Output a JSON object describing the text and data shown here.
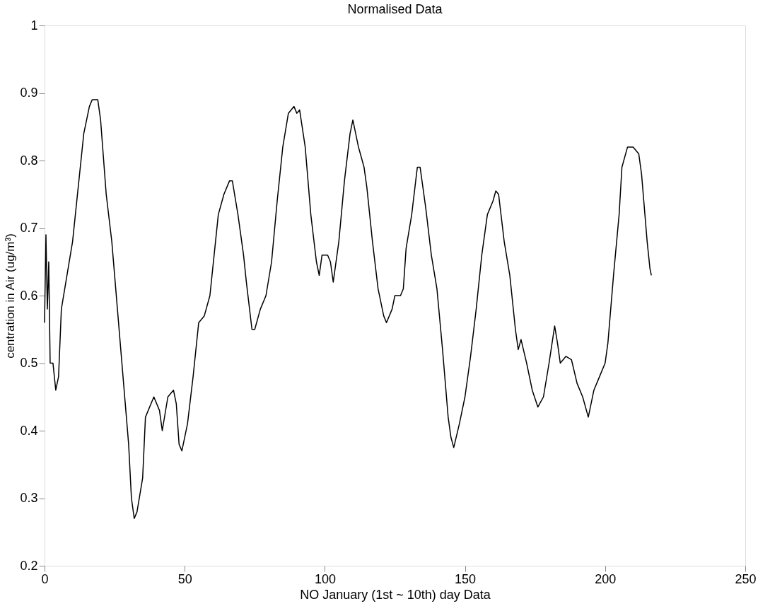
{
  "chart_data": {
    "type": "line",
    "title": "Normalised Data",
    "xlabel": "NO January (1st ~ 10th) day Data",
    "ylabel": "centration in Air    (ug/m³)",
    "x": [
      0,
      0.5,
      1,
      1.5,
      2,
      3,
      4,
      5,
      6,
      8,
      10,
      12,
      14,
      16,
      17,
      19,
      20,
      22,
      24,
      26,
      28,
      30,
      31,
      32,
      33,
      35,
      36,
      38,
      39,
      41,
      42,
      44,
      46,
      47,
      48,
      49,
      51,
      53,
      55,
      57,
      59,
      61,
      62,
      64,
      66,
      67,
      69,
      71,
      72,
      74,
      75,
      77,
      79,
      81,
      83,
      85,
      87,
      89,
      90,
      91,
      93,
      95,
      97,
      98,
      99,
      101,
      102,
      103,
      105,
      107,
      109,
      110,
      112,
      114,
      115,
      117,
      119,
      121,
      122,
      124,
      125,
      127,
      128,
      129,
      131,
      133,
      134,
      136,
      138,
      140,
      142,
      144,
      145,
      146,
      148,
      150,
      152,
      154,
      156,
      158,
      160,
      161,
      162,
      164,
      166,
      168,
      169,
      170,
      172,
      174,
      176,
      178,
      180,
      182,
      183,
      184,
      186,
      188,
      190,
      192,
      194,
      196,
      198,
      200,
      201,
      203,
      205,
      206,
      208,
      210,
      212,
      213,
      214,
      215,
      216,
      216.5
    ],
    "series": [
      {
        "color": "#000000",
        "values": [
          0.56,
          0.69,
          0.58,
          0.65,
          0.5,
          0.5,
          0.46,
          0.48,
          0.58,
          0.63,
          0.68,
          0.76,
          0.84,
          0.88,
          0.89,
          0.89,
          0.86,
          0.75,
          0.68,
          0.58,
          0.48,
          0.38,
          0.3,
          0.27,
          0.28,
          0.33,
          0.42,
          0.44,
          0.45,
          0.43,
          0.4,
          0.45,
          0.46,
          0.44,
          0.38,
          0.37,
          0.41,
          0.48,
          0.56,
          0.57,
          0.6,
          0.68,
          0.72,
          0.75,
          0.77,
          0.77,
          0.72,
          0.66,
          0.62,
          0.55,
          0.55,
          0.58,
          0.6,
          0.65,
          0.74,
          0.82,
          0.87,
          0.88,
          0.87,
          0.875,
          0.82,
          0.72,
          0.65,
          0.63,
          0.66,
          0.66,
          0.65,
          0.62,
          0.68,
          0.77,
          0.84,
          0.86,
          0.82,
          0.79,
          0.76,
          0.68,
          0.61,
          0.57,
          0.56,
          0.58,
          0.6,
          0.6,
          0.61,
          0.67,
          0.72,
          0.79,
          0.79,
          0.73,
          0.66,
          0.61,
          0.52,
          0.42,
          0.39,
          0.375,
          0.41,
          0.45,
          0.51,
          0.58,
          0.66,
          0.72,
          0.74,
          0.755,
          0.75,
          0.68,
          0.63,
          0.55,
          0.52,
          0.535,
          0.5,
          0.46,
          0.435,
          0.45,
          0.5,
          0.555,
          0.53,
          0.5,
          0.51,
          0.505,
          0.47,
          0.45,
          0.42,
          0.46,
          0.48,
          0.5,
          0.53,
          0.63,
          0.72,
          0.79,
          0.82,
          0.82,
          0.81,
          0.78,
          0.73,
          0.68,
          0.64,
          0.63
        ]
      }
    ],
    "xlim": [
      0,
      250
    ],
    "xticks": [
      0,
      50,
      100,
      150,
      200,
      250
    ],
    "ylim": [
      0.2,
      1
    ],
    "yticks": [
      0.2,
      0.3,
      0.4,
      0.5,
      0.6,
      0.7,
      0.8,
      0.9,
      1
    ],
    "grid": false,
    "legend": false,
    "marker": "none",
    "line_style": "solid"
  }
}
